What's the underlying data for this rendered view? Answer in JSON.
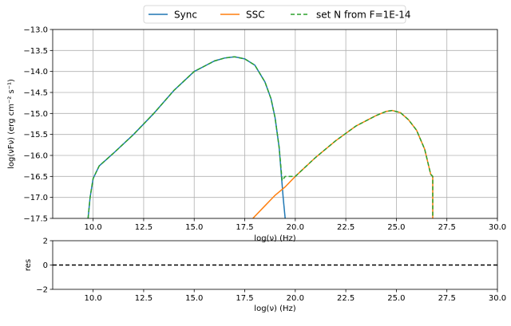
{
  "chart_data": [
    {
      "type": "line",
      "xlabel": "log(ν)  (Hz)",
      "ylabel": "log(νFν)  (erg cm⁻²  s⁻¹)",
      "xlim": [
        8,
        30
      ],
      "ylim": [
        -17.5,
        -13.0
      ],
      "xticks": [
        "10.0",
        "12.5",
        "15.0",
        "17.5",
        "20.0",
        "22.5",
        "25.0",
        "27.5",
        "30.0"
      ],
      "yticks": [
        "−13.0",
        "−13.5",
        "−14.0",
        "−14.5",
        "−15.0",
        "−15.5",
        "−16.0",
        "−16.5",
        "−17.0",
        "−17.5"
      ],
      "grid": true,
      "legend": "top-center",
      "series": [
        {
          "name": "Sync",
          "color": "#1f77b4",
          "style": "solid",
          "x": [
            9.75,
            9.85,
            10.0,
            10.3,
            11.0,
            12.0,
            13.0,
            14.0,
            15.0,
            16.0,
            16.5,
            17.0,
            17.5,
            18.0,
            18.5,
            18.8,
            19.0,
            19.2,
            19.3,
            19.4,
            19.5
          ],
          "y": [
            -17.5,
            -17.0,
            -16.55,
            -16.25,
            -15.95,
            -15.5,
            -15.0,
            -14.45,
            -14.0,
            -13.75,
            -13.68,
            -13.65,
            -13.7,
            -13.85,
            -14.25,
            -14.65,
            -15.1,
            -15.8,
            -16.4,
            -17.0,
            -17.5
          ]
        },
        {
          "name": "SSC",
          "color": "#ff7f0e",
          "style": "solid",
          "x": [
            17.9,
            18.5,
            19.0,
            19.5,
            20.0,
            21.0,
            22.0,
            23.0,
            24.0,
            24.5,
            24.8,
            25.2,
            25.6,
            26.0,
            26.4,
            26.7,
            26.8,
            26.8
          ],
          "y": [
            -17.5,
            -17.2,
            -16.95,
            -16.75,
            -16.5,
            -16.05,
            -15.65,
            -15.3,
            -15.05,
            -14.95,
            -14.93,
            -14.98,
            -15.15,
            -15.4,
            -15.85,
            -16.45,
            -16.5,
            -17.5
          ]
        },
        {
          "name": "set N from F=1E-14",
          "color": "#2ca02c",
          "style": "dashed",
          "x": [
            9.75,
            9.85,
            10.0,
            10.3,
            11.0,
            12.0,
            13.0,
            14.0,
            15.0,
            16.0,
            16.5,
            17.0,
            17.5,
            18.0,
            18.5,
            18.8,
            19.0,
            19.2,
            19.35,
            19.5,
            20.0,
            21.0,
            22.0,
            23.0,
            24.0,
            24.5,
            24.8,
            25.2,
            25.6,
            26.0,
            26.4,
            26.7,
            26.8,
            26.8
          ],
          "y": [
            -17.5,
            -17.0,
            -16.55,
            -16.25,
            -15.95,
            -15.5,
            -15.0,
            -14.45,
            -14.0,
            -13.75,
            -13.68,
            -13.65,
            -13.7,
            -13.85,
            -14.25,
            -14.65,
            -15.1,
            -15.8,
            -16.6,
            -16.5,
            -16.5,
            -16.05,
            -15.65,
            -15.3,
            -15.05,
            -14.95,
            -14.93,
            -14.98,
            -15.15,
            -15.4,
            -15.85,
            -16.45,
            -16.5,
            -17.5
          ]
        }
      ]
    },
    {
      "type": "line",
      "xlabel": "log(ν)  (Hz)",
      "ylabel": "res",
      "xlim": [
        8,
        30
      ],
      "ylim": [
        -2,
        2
      ],
      "xticks": [
        "10.0",
        "12.5",
        "15.0",
        "17.5",
        "20.0",
        "22.5",
        "25.0",
        "27.5",
        "30.0"
      ],
      "yticks": [
        "−2",
        "0",
        "2"
      ],
      "grid": false,
      "series": [
        {
          "color": "#000000",
          "style": "dashed",
          "x": [
            8,
            30
          ],
          "y": [
            0,
            0
          ]
        }
      ]
    }
  ]
}
